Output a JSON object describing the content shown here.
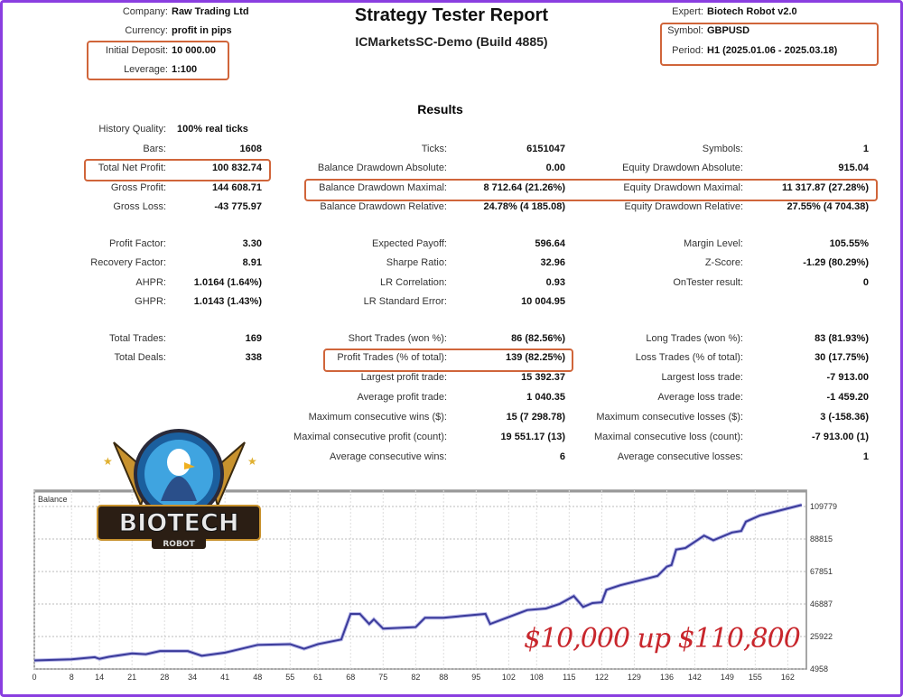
{
  "header": {
    "title": "Strategy Tester Report",
    "server": "ICMarketsSC-Demo (Build 4885)",
    "left": [
      {
        "label": "Company:",
        "value": "Raw Trading Ltd"
      },
      {
        "label": "Currency:",
        "value": "profit in pips"
      },
      {
        "label": "Initial Deposit:",
        "value": "10 000.00"
      },
      {
        "label": "Leverage:",
        "value": "1:100"
      }
    ],
    "right": [
      {
        "label": "Expert:",
        "value": "Biotech Robot v2.0"
      },
      {
        "label": "Symbol:",
        "value": "GBPUSD"
      },
      {
        "label": "Period:",
        "value": "H1 (2025.01.06 - 2025.03.18)"
      }
    ]
  },
  "results": {
    "heading": "Results",
    "history_quality": {
      "label": "History Quality:",
      "value": "100% real ticks"
    },
    "rows": [
      [
        {
          "label": "Bars:",
          "value": "1608"
        },
        {
          "label": "Ticks:",
          "value": "6151047"
        },
        {
          "label": "Symbols:",
          "value": "1"
        }
      ],
      [
        {
          "label": "Total Net Profit:",
          "value": "100 832.74"
        },
        {
          "label": "Balance Drawdown Absolute:",
          "value": "0.00"
        },
        {
          "label": "Equity Drawdown Absolute:",
          "value": "915.04"
        }
      ],
      [
        {
          "label": "Gross Profit:",
          "value": "144 608.71"
        },
        {
          "label": "Balance Drawdown Maximal:",
          "value": "8 712.64 (21.26%)"
        },
        {
          "label": "Equity Drawdown Maximal:",
          "value": "11 317.87 (27.28%)"
        }
      ],
      [
        {
          "label": "Gross Loss:",
          "value": "-43 775.97"
        },
        {
          "label": "Balance Drawdown Relative:",
          "value": "24.78% (4 185.08)"
        },
        {
          "label": "Equity Drawdown Relative:",
          "value": "27.55% (4 704.38)"
        }
      ],
      [
        {
          "label": "Profit Factor:",
          "value": "3.30"
        },
        {
          "label": "Expected Payoff:",
          "value": "596.64"
        },
        {
          "label": "Margin Level:",
          "value": "105.55%"
        }
      ],
      [
        {
          "label": "Recovery Factor:",
          "value": "8.91"
        },
        {
          "label": "Sharpe Ratio:",
          "value": "32.96"
        },
        {
          "label": "Z-Score:",
          "value": "-1.29 (80.29%)"
        }
      ],
      [
        {
          "label": "AHPR:",
          "value": "1.0164 (1.64%)"
        },
        {
          "label": "LR Correlation:",
          "value": "0.93"
        },
        {
          "label": "OnTester result:",
          "value": "0"
        }
      ],
      [
        {
          "label": "GHPR:",
          "value": "1.0143 (1.43%)"
        },
        {
          "label": "LR Standard Error:",
          "value": "10 004.95"
        },
        null
      ],
      [
        {
          "label": "Total Trades:",
          "value": "169"
        },
        {
          "label": "Short Trades (won %):",
          "value": "86 (82.56%)"
        },
        {
          "label": "Long Trades (won %):",
          "value": "83 (81.93%)"
        }
      ],
      [
        {
          "label": "Total Deals:",
          "value": "338"
        },
        {
          "label": "Profit Trades (% of total):",
          "value": "139 (82.25%)"
        },
        {
          "label": "Loss Trades (% of total):",
          "value": "30 (17.75%)"
        }
      ],
      [
        null,
        {
          "label": "Largest profit trade:",
          "value": "15 392.37"
        },
        {
          "label": "Largest loss trade:",
          "value": "-7 913.00"
        }
      ],
      [
        null,
        {
          "label": "Average profit trade:",
          "value": "1 040.35"
        },
        {
          "label": "Average loss trade:",
          "value": "-1 459.20"
        }
      ],
      [
        null,
        {
          "label": "Maximum consecutive wins ($):",
          "value": "15 (7 298.78)"
        },
        {
          "label": "Maximum consecutive losses ($):",
          "value": "3 (-158.36)"
        }
      ],
      [
        null,
        {
          "label": "Maximal consecutive profit (count):",
          "value": "19 551.17 (13)"
        },
        {
          "label": "Maximal consecutive loss (count):",
          "value": "-7 913.00 (1)"
        }
      ],
      [
        null,
        {
          "label": "Average consecutive wins:",
          "value": "6"
        },
        {
          "label": "Average consecutive losses:",
          "value": "1"
        }
      ]
    ]
  },
  "logo": {
    "text": "BIOTECH",
    "subtext": "ROBOT"
  },
  "promo_text": "$10,000 up $110,800",
  "colors": {
    "highlight": "#d0653a",
    "frame": "#8a3ee0",
    "balance_line": "#3a3a9a",
    "promo": "#c8262c"
  },
  "chart_data": {
    "type": "line",
    "title": "Balance",
    "x_ticks": [
      0,
      8,
      14,
      21,
      28,
      34,
      41,
      48,
      55,
      61,
      68,
      75,
      82,
      88,
      95,
      102,
      108,
      115,
      122,
      129,
      136,
      142,
      149,
      155,
      162
    ],
    "y_ticks": [
      4958,
      25922,
      46887,
      67851,
      88815,
      109779
    ],
    "xlim": [
      0,
      166
    ],
    "ylim": [
      4958,
      109779
    ],
    "grid": true,
    "series": [
      {
        "x": [
          0,
          8,
          13,
          14,
          16,
          21,
          24,
          27,
          33,
          36,
          41,
          48,
          55,
          58,
          61,
          66,
          68,
          70,
          72,
          73,
          75,
          82,
          84,
          88,
          95,
          97,
          98,
          102,
          106,
          110,
          113,
          116,
          118,
          120,
          122,
          123,
          126,
          130,
          134,
          136,
          137,
          138,
          140,
          144,
          146,
          150,
          152,
          153,
          156,
          160,
          165
        ],
        "y": [
          10500,
          11200,
          12600,
          11500,
          12800,
          15000,
          14500,
          16500,
          16500,
          13500,
          15500,
          20500,
          21000,
          18000,
          21000,
          24000,
          40500,
          40500,
          34000,
          37000,
          31000,
          32000,
          38000,
          38000,
          40000,
          40500,
          34000,
          38500,
          43000,
          44000,
          47000,
          52000,
          45000,
          47500,
          48000,
          56000,
          59000,
          62000,
          65000,
          71000,
          72000,
          82000,
          83000,
          91000,
          88000,
          93000,
          94000,
          100000,
          104000,
          107000,
          110800
        ]
      }
    ]
  }
}
